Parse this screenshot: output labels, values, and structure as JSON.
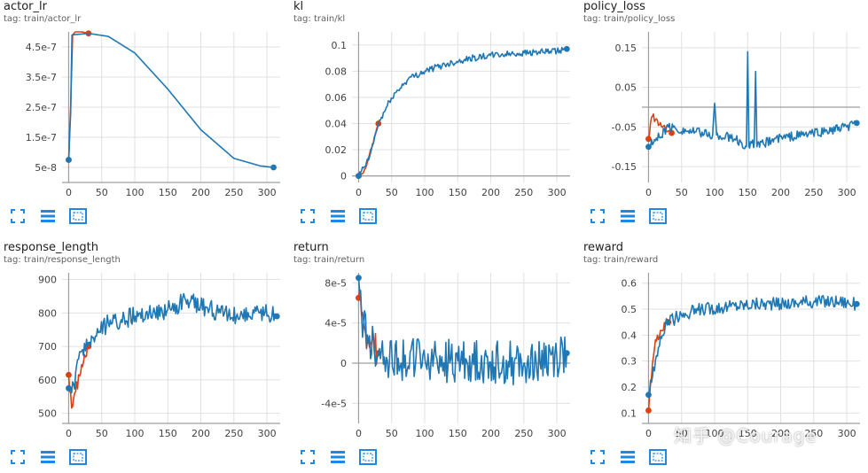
{
  "charts": [
    {
      "id": "actor_lr",
      "title": "actor_lr",
      "tag": "tag: train/actor_lr"
    },
    {
      "id": "kl",
      "title": "kl",
      "tag": "tag: train/kl"
    },
    {
      "id": "policy_loss",
      "title": "policy_loss",
      "tag": "tag: train/policy_loss"
    },
    {
      "id": "response_length",
      "title": "response_length",
      "tag": "tag: train/response_length"
    },
    {
      "id": "return",
      "title": "return",
      "tag": "tag: train/return"
    },
    {
      "id": "reward",
      "title": "reward",
      "tag": "tag: train/reward"
    }
  ],
  "toolbar_icons": [
    "fit-domain-icon",
    "toggle-log-scale-icon",
    "download-icon"
  ],
  "watermark": "知乎 @Courage",
  "colors": {
    "run_a": "#1f77b4",
    "run_b": "#d84315",
    "axis": "#9e9e9e",
    "grid": "#e0e0e0"
  },
  "chart_data": [
    {
      "type": "line",
      "title": "actor_lr",
      "xlim": [
        -10,
        320
      ],
      "ylim": [
        0,
        5e-07
      ],
      "x_ticks": [
        0,
        50,
        100,
        150,
        200,
        250,
        300
      ],
      "y_ticks": [
        5e-08,
        1.5e-07,
        2.5e-07,
        3.5e-07,
        4.5e-07
      ],
      "y_tick_labels": [
        "5e-8",
        "1.5e-7",
        "2.5e-7",
        "3.5e-7",
        "4.5e-7"
      ],
      "series": [
        {
          "color": "#d84315",
          "x": [
            0,
            3,
            6,
            10,
            20,
            30
          ],
          "y": [
            7.5e-08,
            2.5e-07,
            4.9e-07,
            5e-07,
            5e-07,
            4.95e-07
          ]
        },
        {
          "color": "#1f77b4",
          "x": [
            0,
            3,
            5,
            30,
            60,
            100,
            150,
            200,
            250,
            290,
            310
          ],
          "y": [
            7.5e-08,
            2.3e-07,
            4.9e-07,
            4.95e-07,
            4.85e-07,
            4.3e-07,
            3.1e-07,
            1.75e-07,
            8e-08,
            5.5e-08,
            5e-08
          ]
        }
      ]
    },
    {
      "type": "line",
      "title": "kl",
      "xlim": [
        -10,
        320
      ],
      "ylim": [
        -0.005,
        0.11
      ],
      "x_ticks": [
        0,
        50,
        100,
        150,
        200,
        250,
        300
      ],
      "y_ticks": [
        0,
        0.02,
        0.04,
        0.06,
        0.08,
        0.1
      ],
      "y_tick_labels": [
        "0",
        "0.02",
        "0.04",
        "0.06",
        "0.08",
        "0.1"
      ],
      "series": [
        {
          "color": "#d84315",
          "x": [
            0,
            10,
            20,
            30
          ],
          "y": [
            0,
            0.005,
            0.022,
            0.04
          ]
        },
        {
          "color": "#1f77b4",
          "x": [
            0,
            15,
            30,
            50,
            75,
            100,
            130,
            160,
            200,
            250,
            300,
            315
          ],
          "y": [
            0,
            0.012,
            0.04,
            0.06,
            0.074,
            0.08,
            0.085,
            0.089,
            0.092,
            0.094,
            0.095,
            0.097
          ]
        }
      ]
    },
    {
      "type": "line",
      "title": "policy_loss",
      "xlim": [
        -10,
        320
      ],
      "ylim": [
        -0.19,
        0.19
      ],
      "x_ticks": [
        0,
        50,
        100,
        150,
        200,
        250,
        300
      ],
      "y_ticks": [
        -0.15,
        -0.05,
        0.05,
        0.15
      ],
      "y_tick_labels": [
        "-0.15",
        "-0.05",
        "0.05",
        "0.15"
      ],
      "series": [
        {
          "color": "#d84315",
          "x": [
            0,
            5,
            10,
            20,
            30,
            35
          ],
          "y": [
            -0.08,
            -0.02,
            -0.03,
            -0.05,
            -0.06,
            -0.065
          ]
        },
        {
          "color": "#1f77b4",
          "x": [
            0,
            30,
            60,
            97,
            100,
            103,
            130,
            148,
            150,
            152,
            160,
            162,
            164,
            190,
            230,
            270,
            300,
            315
          ],
          "y": [
            -0.1,
            -0.05,
            -0.06,
            -0.07,
            0.01,
            -0.07,
            -0.08,
            -0.1,
            0.14,
            -0.1,
            -0.09,
            0.09,
            -0.1,
            -0.08,
            -0.07,
            -0.06,
            -0.05,
            -0.04
          ]
        }
      ]
    },
    {
      "type": "line",
      "title": "response_length",
      "xlim": [
        -10,
        320
      ],
      "ylim": [
        470,
        920
      ],
      "x_ticks": [
        0,
        50,
        100,
        150,
        200,
        250,
        300
      ],
      "y_ticks": [
        500,
        600,
        700,
        800,
        900
      ],
      "y_tick_labels": [
        "500",
        "600",
        "700",
        "800",
        "900"
      ],
      "series": [
        {
          "color": "#d84315",
          "x": [
            0,
            5,
            10,
            20,
            30
          ],
          "y": [
            615,
            505,
            560,
            650,
            700
          ]
        },
        {
          "color": "#1f77b4",
          "x": [
            0,
            5,
            20,
            40,
            60,
            80,
            100,
            130,
            150,
            180,
            200,
            230,
            260,
            290,
            315
          ],
          "y": [
            575,
            560,
            690,
            730,
            770,
            780,
            790,
            800,
            810,
            840,
            820,
            800,
            790,
            800,
            790
          ]
        }
      ]
    },
    {
      "type": "line",
      "title": "return",
      "xlim": [
        -10,
        320
      ],
      "ylim": [
        -6e-05,
        9e-05
      ],
      "x_ticks": [
        0,
        50,
        100,
        150,
        200,
        250,
        300
      ],
      "y_ticks": [
        -4e-05,
        0,
        4e-05,
        8e-05
      ],
      "y_tick_labels": [
        "-4e-5",
        "0",
        "4e-5",
        "8e-5"
      ],
      "series": [
        {
          "color": "#d84315",
          "x": [
            0,
            5,
            10,
            20,
            30
          ],
          "y": [
            6.5e-05,
            4.5e-05,
            3e-05,
            2e-05,
            1e-05
          ]
        },
        {
          "color": "#1f77b4",
          "x": [
            0,
            5,
            15,
            30,
            60,
            100,
            150,
            200,
            250,
            300,
            315
          ],
          "y": [
            8.5e-05,
            4.5e-05,
            2e-05,
            1e-05,
            5e-06,
            3e-06,
            2e-06,
            1e-06,
            0,
            5e-06,
            1e-05
          ]
        }
      ]
    },
    {
      "type": "line",
      "title": "reward",
      "xlim": [
        -10,
        320
      ],
      "ylim": [
        0.06,
        0.64
      ],
      "x_ticks": [
        0,
        50,
        100,
        150,
        200,
        250,
        300
      ],
      "y_ticks": [
        0.1,
        0.2,
        0.3,
        0.4,
        0.5,
        0.6
      ],
      "y_tick_labels": [
        "0.1",
        "0.2",
        "0.3",
        "0.4",
        "0.5",
        "0.6"
      ],
      "series": [
        {
          "color": "#d84315",
          "x": [
            0,
            5,
            10,
            20,
            30
          ],
          "y": [
            0.11,
            0.25,
            0.38,
            0.42,
            0.45
          ]
        },
        {
          "color": "#1f77b4",
          "x": [
            0,
            10,
            25,
            50,
            80,
            120,
            160,
            200,
            250,
            290,
            315
          ],
          "y": [
            0.17,
            0.3,
            0.44,
            0.48,
            0.5,
            0.51,
            0.52,
            0.52,
            0.53,
            0.53,
            0.52
          ]
        }
      ]
    }
  ]
}
